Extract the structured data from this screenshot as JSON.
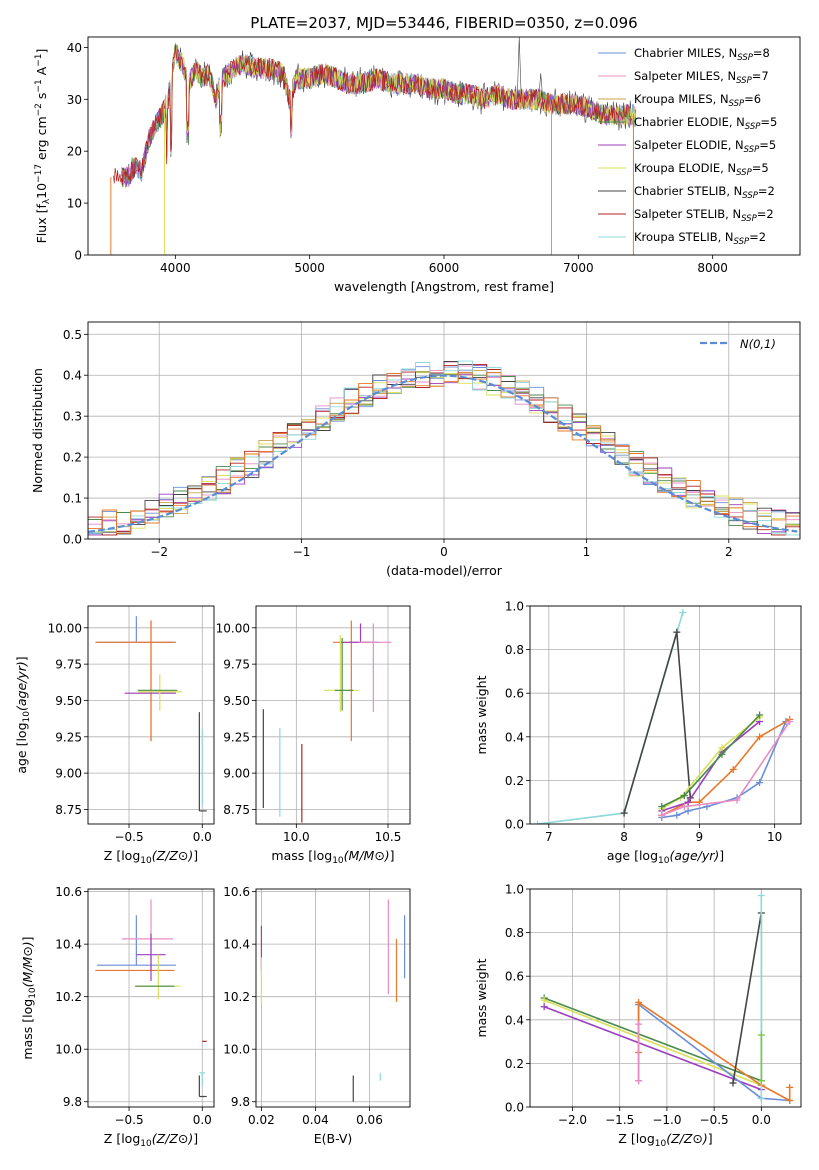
{
  "figure": {
    "title": "PLATE=2037, MJD=53446, FIBERID=0350, z=0.096"
  },
  "colors": {
    "Chabrier MILES": "#6a8fd8",
    "Salpeter MILES": "#e88cc4",
    "Kroupa MILES": "#c8a24a",
    "Chabrier ELODIE": "#4a8a4a",
    "Salpeter ELODIE": "#9b3fbf",
    "Kroupa ELODIE": "#d8e05a",
    "Chabrier STELIB": "#444444",
    "Salpeter STELIB": "#b22222",
    "Kroupa STELIB": "#8fd8d8",
    "normal": "#5b8bd6",
    "orange": "#e8782a",
    "green": "#7ac943"
  },
  "chart_data": [
    {
      "id": "spectrum",
      "type": "line",
      "xlabel": "wavelength [Angstrom, rest frame]",
      "ylabel_parts": [
        "Flux [f",
        "λ",
        "10",
        "−17",
        " erg cm",
        "−2",
        " s",
        "−1",
        " A",
        "−1",
        "]"
      ],
      "xlim": [
        3350,
        8650
      ],
      "ylim": [
        0,
        42
      ],
      "xticks": [
        4000,
        5000,
        6000,
        7000,
        8000
      ],
      "yticks": [
        0,
        10,
        20,
        30,
        40
      ],
      "grid": false,
      "legend_placement": "upper-right",
      "legend": [
        {
          "label": "Chabrier MILES, N",
          "sub": "SSP",
          "eq": "=8",
          "color": "#6a8fd8"
        },
        {
          "label": "Salpeter MILES, N",
          "sub": "SSP",
          "eq": "=7",
          "color": "#e88cc4"
        },
        {
          "label": "Kroupa MILES, N",
          "sub": "SSP",
          "eq": "=6",
          "color": "#c8a24a"
        },
        {
          "label": "Chabrier ELODIE, N",
          "sub": "SSP",
          "eq": "=5",
          "color": "#4a8a4a"
        },
        {
          "label": "Salpeter ELODIE, N",
          "sub": "SSP",
          "eq": "=5",
          "color": "#9b3fbf"
        },
        {
          "label": "Kroupa ELODIE, N",
          "sub": "SSP",
          "eq": "=5",
          "color": "#d8e05a"
        },
        {
          "label": "Chabrier STELIB, N",
          "sub": "SSP",
          "eq": "=2",
          "color": "#444444"
        },
        {
          "label": "Salpeter STELIB, N",
          "sub": "SSP",
          "eq": "=2",
          "color": "#b22222"
        },
        {
          "label": "Kroupa STELIB, N",
          "sub": "SSP",
          "eq": "=2",
          "color": "#8fd8d8"
        }
      ],
      "envelope": {
        "x": [
          3600,
          3650,
          3700,
          3750,
          3800,
          3850,
          3900,
          3950,
          4000,
          4050,
          4100,
          4150,
          4200,
          4250,
          4300,
          4350,
          4400,
          4450,
          4500,
          4600,
          4700,
          4800,
          4850,
          4900,
          5000,
          5100,
          5200,
          5300,
          5400,
          5500,
          5600,
          5700,
          5800,
          5900,
          6000,
          6100,
          6200,
          6300,
          6400,
          6500,
          6600,
          6700,
          6800,
          6900,
          7000,
          7100,
          7200,
          7300,
          7400
        ],
        "y": [
          15,
          15,
          17,
          16,
          22,
          25,
          27,
          30,
          39,
          37,
          33,
          36,
          34,
          35,
          30,
          34,
          35,
          36,
          37,
          36,
          36,
          35,
          30,
          34,
          34,
          35,
          34,
          33,
          33,
          34,
          33,
          33,
          33,
          32,
          32,
          31,
          31,
          30,
          31,
          30,
          30,
          30,
          29,
          29,
          29,
          28,
          27,
          27,
          27
        ]
      },
      "features": {
        "drops": [
          {
            "x": 3520,
            "color": "#e8782a"
          },
          {
            "x": 3920,
            "color": "#d8e05a"
          },
          {
            "x": 6800,
            "color": "#c8a24a"
          },
          {
            "x": 7410,
            "color": "#e8782a"
          }
        ],
        "spikes": [
          {
            "x": 6560,
            "y": 42
          },
          {
            "x": 6720,
            "y": 35
          }
        ]
      }
    },
    {
      "id": "residuals",
      "type": "line",
      "xlabel": "(data-model)/error",
      "ylabel": "Normed distribution",
      "xlim": [
        -2.5,
        2.5
      ],
      "ylim": [
        0,
        0.53
      ],
      "xticks": [
        -2,
        -1,
        0,
        1,
        2
      ],
      "yticks": [
        0.0,
        0.1,
        0.2,
        0.3,
        0.4,
        0.5
      ],
      "grid": true,
      "legend_placement": "upper-right",
      "normal_label": "N(0,1)",
      "normal": {
        "mean": 0,
        "sigma": 1
      },
      "bin_width": 0.1
    },
    {
      "id": "age_vs_Z",
      "type": "scatter",
      "xlabel": "Z [log10(Z/Z⊙)]",
      "ylabel": "age  [log10(age/yr)]",
      "xlim": [
        -0.78,
        0.08
      ],
      "ylim": [
        8.65,
        10.15
      ],
      "xticks": [
        -0.5,
        0.0
      ],
      "yticks": [
        8.75,
        9.0,
        9.25,
        9.5,
        9.75,
        10.0
      ],
      "grid": true,
      "errorbars": [
        {
          "x": -0.45,
          "y": 9.9,
          "xerr": [
            0.27,
            0.27
          ],
          "yerr": [
            0.0,
            0.18
          ],
          "color": "#6a8fd8"
        },
        {
          "x": -0.35,
          "y": 9.9,
          "xerr": [
            0.2,
            0.15
          ],
          "yerr": [
            0.68,
            0.15
          ],
          "color": "#e88cc4"
        },
        {
          "x": -0.35,
          "y": 9.9,
          "xerr": [
            0.38,
            0.16
          ],
          "yerr": [
            0.68,
            0.15
          ],
          "color": "#e8782a"
        },
        {
          "x": -0.33,
          "y": 9.55,
          "xerr": [
            0.2,
            0.15
          ],
          "yerr": [
            0.0,
            0.0
          ],
          "color": "#9b3fbf"
        },
        {
          "x": -0.29,
          "y": 9.56,
          "xerr": [
            0.15,
            0.15
          ],
          "yerr": [
            0.13,
            0.12
          ],
          "color": "#d8e05a"
        },
        {
          "x": -0.3,
          "y": 9.57,
          "xerr": [
            0.14,
            0.13
          ],
          "yerr": [
            0.0,
            0.0
          ],
          "color": "#4a8a4a"
        },
        {
          "x": -0.02,
          "y": 8.74,
          "xerr": [
            0.0,
            0.05
          ],
          "yerr": [
            0.0,
            0.68
          ],
          "color": "#444444"
        },
        {
          "x": 0.0,
          "y": 8.78,
          "xerr": [
            0.0,
            0.0
          ],
          "yerr": [
            0.0,
            0.52
          ],
          "color": "#8fd8d8"
        }
      ]
    },
    {
      "id": "age_vs_mass",
      "type": "scatter",
      "xlabel": "mass [log10(M/M⊙)]",
      "ylabel": "",
      "xlim": [
        9.78,
        10.62
      ],
      "ylim": [
        8.65,
        10.15
      ],
      "xticks": [
        10.0,
        10.5
      ],
      "yticks": [
        8.75,
        9.0,
        9.25,
        9.5,
        9.75,
        10.0
      ],
      "grid": true,
      "errorbars": [
        {
          "x": 9.82,
          "y": 8.76,
          "xerr": [
            0.0,
            0.0
          ],
          "yerr": [
            0.0,
            0.68
          ],
          "color": "#444444"
        },
        {
          "x": 9.91,
          "y": 8.8,
          "xerr": [
            0.0,
            0.0
          ],
          "yerr": [
            0.1,
            0.51
          ],
          "color": "#8fd8d8"
        },
        {
          "x": 10.03,
          "y": 8.76,
          "xerr": [
            0.0,
            0.0
          ],
          "yerr": [
            0.1,
            0.44
          ],
          "color": "#b22222"
        },
        {
          "x": 10.3,
          "y": 9.9,
          "xerr": [
            0.1,
            0.1
          ],
          "yerr": [
            0.68,
            0.15
          ],
          "color": "#e8782a"
        },
        {
          "x": 10.35,
          "y": 9.9,
          "xerr": [
            0.1,
            0.1
          ],
          "yerr": [
            0.0,
            0.13
          ],
          "color": "#9b3fbf"
        },
        {
          "x": 10.42,
          "y": 9.9,
          "xerr": [
            0.08,
            0.1
          ],
          "yerr": [
            0.48,
            0.13
          ],
          "color": "#e88cc4"
        },
        {
          "x": 10.24,
          "y": 9.57,
          "xerr": [
            0.09,
            0.1
          ],
          "yerr": [
            0.15,
            0.38
          ],
          "color": "#d8e05a"
        },
        {
          "x": 10.25,
          "y": 9.57,
          "xerr": [
            0.04,
            0.06
          ],
          "yerr": [
            0.14,
            0.36
          ],
          "color": "#4a8a4a"
        }
      ]
    },
    {
      "id": "weight_vs_age",
      "type": "line",
      "xlabel": "age  [log10(age/yr)]",
      "ylabel": "mass weight",
      "xlim": [
        6.75,
        10.35
      ],
      "ylim": [
        0,
        1.0
      ],
      "xticks": [
        7,
        8,
        9,
        10
      ],
      "yticks": [
        0.0,
        0.2,
        0.4,
        0.6,
        0.8,
        1.0
      ],
      "grid": true,
      "series": [
        {
          "color": "#8fd8d8",
          "x": [
            6.85,
            8.0,
            8.78
          ],
          "y": [
            0.0,
            0.05,
            0.97
          ]
        },
        {
          "color": "#444444",
          "x": [
            8.0,
            8.7,
            8.88
          ],
          "y": [
            0.05,
            0.88,
            0.12
          ]
        },
        {
          "color": "#6a8fd8",
          "x": [
            8.5,
            8.7,
            8.85,
            9.1,
            9.5,
            9.8,
            10.15
          ],
          "y": [
            0.03,
            0.04,
            0.06,
            0.08,
            0.12,
            0.19,
            0.47
          ]
        },
        {
          "color": "#e8782a",
          "x": [
            8.5,
            8.85,
            9.0,
            9.45,
            9.8,
            10.2
          ],
          "y": [
            0.04,
            0.1,
            0.1,
            0.25,
            0.4,
            0.48
          ]
        },
        {
          "color": "#9b3fbf",
          "x": [
            8.5,
            8.85,
            9.3,
            9.8
          ],
          "y": [
            0.06,
            0.1,
            0.33,
            0.47
          ]
        },
        {
          "color": "#d8e05a",
          "x": [
            8.5,
            8.75,
            9.3,
            9.8
          ],
          "y": [
            0.07,
            0.12,
            0.35,
            0.49
          ]
        },
        {
          "color": "#4a8a4a",
          "x": [
            8.5,
            8.8,
            9.3,
            9.8
          ],
          "y": [
            0.08,
            0.13,
            0.32,
            0.5
          ]
        },
        {
          "color": "#e88cc4",
          "x": [
            8.5,
            8.8,
            9.5,
            10.2
          ],
          "y": [
            0.04,
            0.08,
            0.11,
            0.47
          ]
        }
      ]
    },
    {
      "id": "mass_vs_Z",
      "type": "scatter",
      "xlabel": "Z [log10(Z/Z⊙)]",
      "ylabel": "mass [log10(M/M⊙)]",
      "xlim": [
        -0.78,
        0.08
      ],
      "ylim": [
        9.78,
        10.61
      ],
      "xticks": [
        -0.5,
        0.0
      ],
      "yticks": [
        9.8,
        10.0,
        10.2,
        10.4,
        10.6
      ],
      "grid": true,
      "errorbars": [
        {
          "x": -0.45,
          "y": 10.32,
          "xerr": [
            0.27,
            0.27
          ],
          "yerr": [
            0.0,
            0.19
          ],
          "color": "#6a8fd8"
        },
        {
          "x": -0.35,
          "y": 10.42,
          "xerr": [
            0.2,
            0.15
          ],
          "yerr": [
            0.08,
            0.15
          ],
          "color": "#e88cc4"
        },
        {
          "x": -0.35,
          "y": 10.3,
          "xerr": [
            0.38,
            0.16
          ],
          "yerr": [
            0.0,
            0.05
          ],
          "color": "#e8782a"
        },
        {
          "x": -0.35,
          "y": 10.36,
          "xerr": [
            0.1,
            0.1
          ],
          "yerr": [
            0.1,
            0.08
          ],
          "color": "#9b3fbf"
        },
        {
          "x": -0.3,
          "y": 10.24,
          "xerr": [
            0.15,
            0.15
          ],
          "yerr": [
            0.05,
            0.12
          ],
          "color": "#d8e05a"
        },
        {
          "x": -0.32,
          "y": 10.24,
          "xerr": [
            0.14,
            0.13
          ],
          "yerr": [
            0.0,
            0.0
          ],
          "color": "#4a8a4a"
        },
        {
          "x": 0.0,
          "y": 10.03,
          "xerr": [
            0.0,
            0.03
          ],
          "yerr": [
            0.0,
            0.0
          ],
          "color": "#b22222"
        },
        {
          "x": 0.0,
          "y": 9.91,
          "xerr": [
            0.02,
            0.02
          ],
          "yerr": [
            0.05,
            0.0
          ],
          "color": "#8fd8d8"
        },
        {
          "x": -0.02,
          "y": 9.82,
          "xerr": [
            0.0,
            0.05
          ],
          "yerr": [
            0.0,
            0.08
          ],
          "color": "#444444"
        }
      ]
    },
    {
      "id": "mass_vs_EBV",
      "type": "scatter",
      "xlabel": "E(B-V)",
      "ylabel": "",
      "xlim": [
        0.018,
        0.075
      ],
      "ylim": [
        9.78,
        10.61
      ],
      "xticks": [
        0.02,
        0.04,
        0.06
      ],
      "yticks": [
        9.8,
        10.0,
        10.2,
        10.4,
        10.6
      ],
      "grid": true,
      "errorbars": [
        {
          "x": 0.02,
          "y": 10.4,
          "xerr": [
            0.0,
            0.0
          ],
          "yerr": [
            0.1,
            0.07
          ],
          "color": "#9b3fbf"
        },
        {
          "x": 0.02,
          "y": 10.25,
          "xerr": [
            0.0,
            0.0
          ],
          "yerr": [
            0.08,
            0.1
          ],
          "color": "#d8e05a"
        },
        {
          "x": 0.054,
          "y": 9.84,
          "xerr": [
            0.0,
            0.0
          ],
          "yerr": [
            0.04,
            0.06
          ],
          "color": "#444444"
        },
        {
          "x": 0.064,
          "y": 9.9,
          "xerr": [
            0.0,
            0.0
          ],
          "yerr": [
            0.02,
            0.01
          ],
          "color": "#8fd8d8"
        },
        {
          "x": 0.067,
          "y": 10.38,
          "xerr": [
            0.0,
            0.0
          ],
          "yerr": [
            0.17,
            0.19
          ],
          "color": "#e88cc4"
        },
        {
          "x": 0.07,
          "y": 10.28,
          "xerr": [
            0.0,
            0.0
          ],
          "yerr": [
            0.1,
            0.14
          ],
          "color": "#e8782a"
        },
        {
          "x": 0.073,
          "y": 10.38,
          "xerr": [
            0.0,
            0.0
          ],
          "yerr": [
            0.11,
            0.13
          ],
          "color": "#6a8fd8"
        }
      ]
    },
    {
      "id": "weight_vs_Z",
      "type": "line",
      "xlabel": "Z [log10(Z/Z⊙)]",
      "ylabel": "mass weight",
      "xlim": [
        -2.45,
        0.42
      ],
      "ylim": [
        0,
        1.0
      ],
      "xticks": [
        -2.0,
        -1.5,
        -1.0,
        -0.5,
        0.0
      ],
      "yticks": [
        0.0,
        0.2,
        0.4,
        0.6,
        0.8,
        1.0
      ],
      "grid": true,
      "series": [
        {
          "color": "#4a8a4a",
          "x": [
            -2.3,
            0.0
          ],
          "y": [
            0.5,
            0.12
          ]
        },
        {
          "color": "#d8e05a",
          "x": [
            -2.3,
            0.0
          ],
          "y": [
            0.49,
            0.1
          ]
        },
        {
          "color": "#9b3fbf",
          "x": [
            -2.3,
            0.0
          ],
          "y": [
            0.46,
            0.08
          ]
        },
        {
          "color": "#6a8fd8",
          "x": [
            -1.3,
            -1.3,
            0.0,
            0.3
          ],
          "y": [
            0.12,
            0.47,
            0.04,
            0.03
          ]
        },
        {
          "color": "#e8782a",
          "x": [
            -1.3,
            -1.3,
            0.0,
            0.3,
            0.3
          ],
          "y": [
            0.25,
            0.48,
            0.1,
            0.03,
            0.09
          ]
        },
        {
          "color": "#e88cc4",
          "x": [
            -1.3,
            -1.3
          ],
          "y": [
            0.12,
            0.38
          ]
        },
        {
          "color": "#444444",
          "x": [
            -0.3,
            0.0,
            0.0
          ],
          "y": [
            0.11,
            0.89,
            0.12
          ]
        },
        {
          "color": "#8fd8d8",
          "x": [
            0.0,
            0.0,
            0.0
          ],
          "y": [
            0.04,
            0.97,
            0.12
          ]
        },
        {
          "color": "#7ac943",
          "x": [
            0.0,
            0.0
          ],
          "y": [
            0.12,
            0.33
          ]
        }
      ]
    }
  ]
}
